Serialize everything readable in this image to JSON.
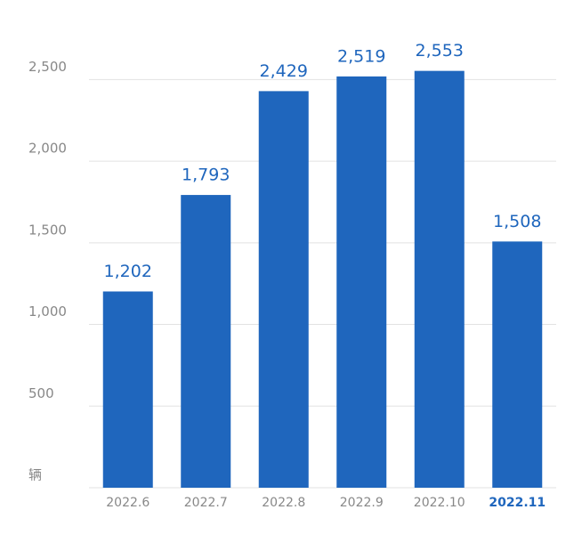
{
  "chart_data": {
    "type": "bar",
    "categories": [
      "2022.6",
      "2022.7",
      "2022.8",
      "2022.9",
      "2022.10",
      "2022.11"
    ],
    "values": [
      1202,
      1793,
      2429,
      2519,
      2553,
      1508
    ],
    "value_labels": [
      "1,202",
      "1,793",
      "2,429",
      "2,519",
      "2,553",
      "1,508"
    ],
    "color": "#1f66bd",
    "highlight_category": 5,
    "ylim": [
      0,
      2750
    ],
    "yticks": [
      {
        "value": 0,
        "label": "辆"
      },
      500,
      {
        "value": 1000,
        "label": "1,000"
      },
      {
        "value": 1500,
        "label": "1,500"
      },
      {
        "value": 2000,
        "label": "2,000"
      },
      {
        "value": 2500,
        "label": "2,500"
      }
    ],
    "grid": true
  }
}
